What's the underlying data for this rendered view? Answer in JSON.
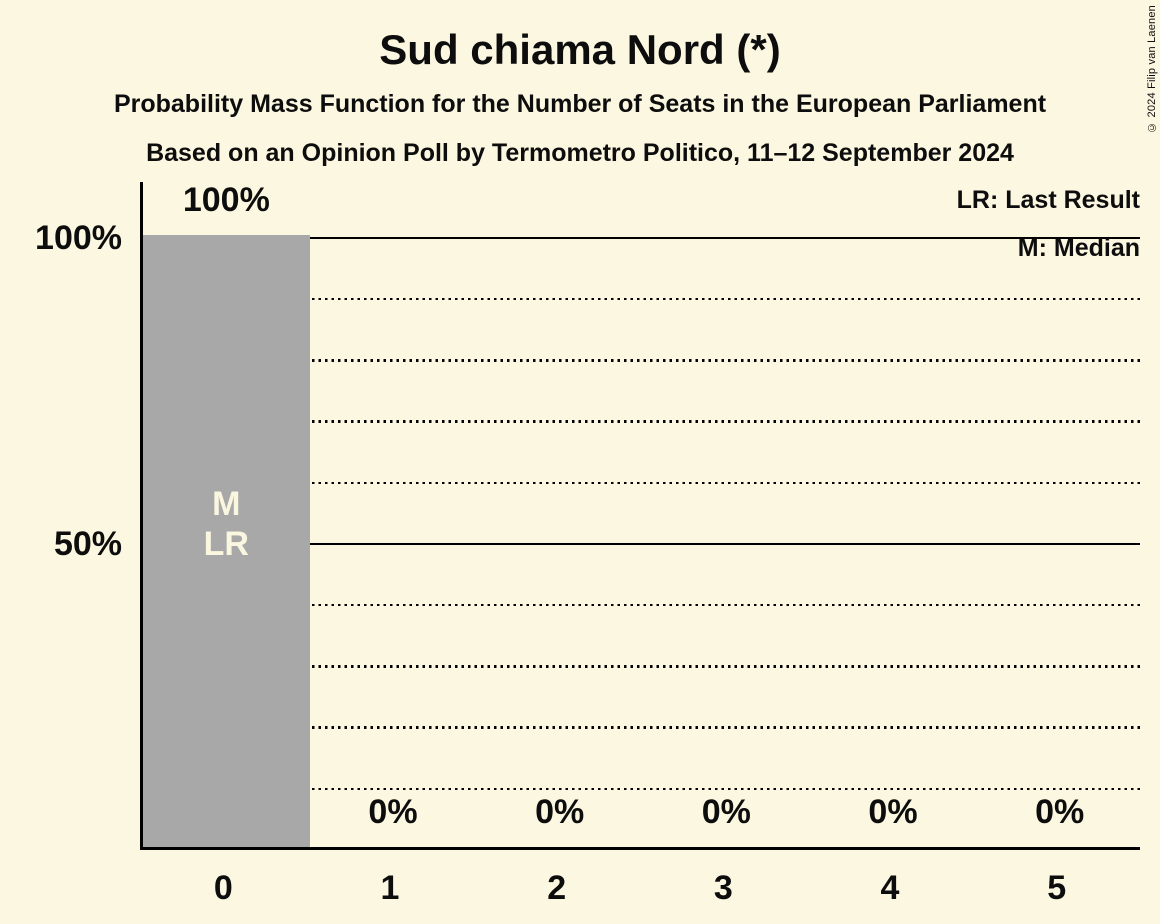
{
  "title": "Sud chiama Nord (*)",
  "subtitle_line1": "Probability Mass Function for the Number of Seats in the European Parliament",
  "subtitle_line2": "Based on an Opinion Poll by Termometro Politico, 11–12 September 2024",
  "copyright": "© 2024 Filip van Laenen",
  "legend": {
    "last_result": "LR: Last Result",
    "median": "M: Median"
  },
  "colors": {
    "background": "#FBF7E0",
    "bar": "#A8A8A8",
    "text": "#0D0D0D",
    "bar_label": "#FAF6DF",
    "gridline": "#000000"
  },
  "chart_data": {
    "type": "bar",
    "title": "Sud chiama Nord (*)",
    "categories": [
      "0",
      "1",
      "2",
      "3",
      "4",
      "5"
    ],
    "values": [
      100,
      0,
      0,
      0,
      0,
      0
    ],
    "value_labels": [
      "100%",
      "0%",
      "0%",
      "0%",
      "0%",
      "0%"
    ],
    "xlabel": "",
    "ylabel": "",
    "ylim": [
      0,
      100
    ],
    "grid": true,
    "legend_position": "top-right",
    "yticks": [
      {
        "pct": 100,
        "label": "100%"
      },
      {
        "pct": 50,
        "label": "50%"
      }
    ],
    "gridlines": [
      {
        "pct": 10,
        "style": "dotted"
      },
      {
        "pct": 20,
        "style": "dotted"
      },
      {
        "pct": 30,
        "style": "dotted"
      },
      {
        "pct": 40,
        "style": "dotted"
      },
      {
        "pct": 50,
        "style": "solid"
      },
      {
        "pct": 60,
        "style": "dotted"
      },
      {
        "pct": 70,
        "style": "dotted"
      },
      {
        "pct": 80,
        "style": "dotted"
      },
      {
        "pct": 90,
        "style": "dotted"
      },
      {
        "pct": 100,
        "style": "solid"
      }
    ],
    "annotations": [
      {
        "category": "0",
        "lines": [
          "M",
          "LR"
        ]
      }
    ]
  }
}
